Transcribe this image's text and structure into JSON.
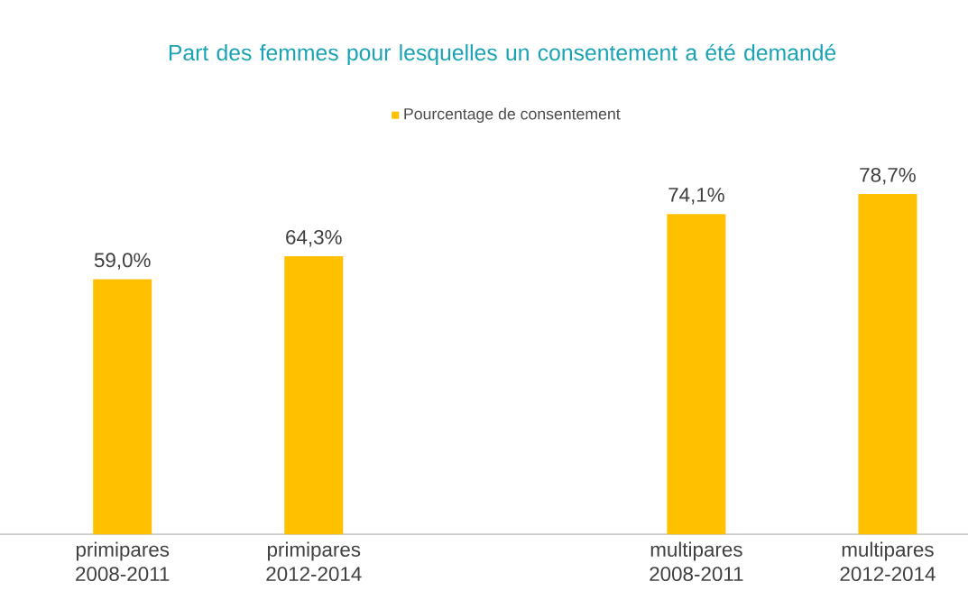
{
  "chart_data": {
    "type": "bar",
    "title": "Part des femmes pour lesquelles un consentement a été demandé",
    "categories": [
      "primipares 2008-2011",
      "primipares 2012-2014",
      null,
      "multipares 2008-2011",
      "multipares 2012-2014"
    ],
    "series": [
      {
        "name": "Pourcentage de consentement",
        "color": "#ffc000",
        "values": [
          59.0,
          64.3,
          null,
          74.1,
          78.7
        ],
        "value_labels": [
          "59,0%",
          "64,3%",
          null,
          "74,1%",
          "78,7%"
        ]
      }
    ],
    "legend": "top"
  }
}
